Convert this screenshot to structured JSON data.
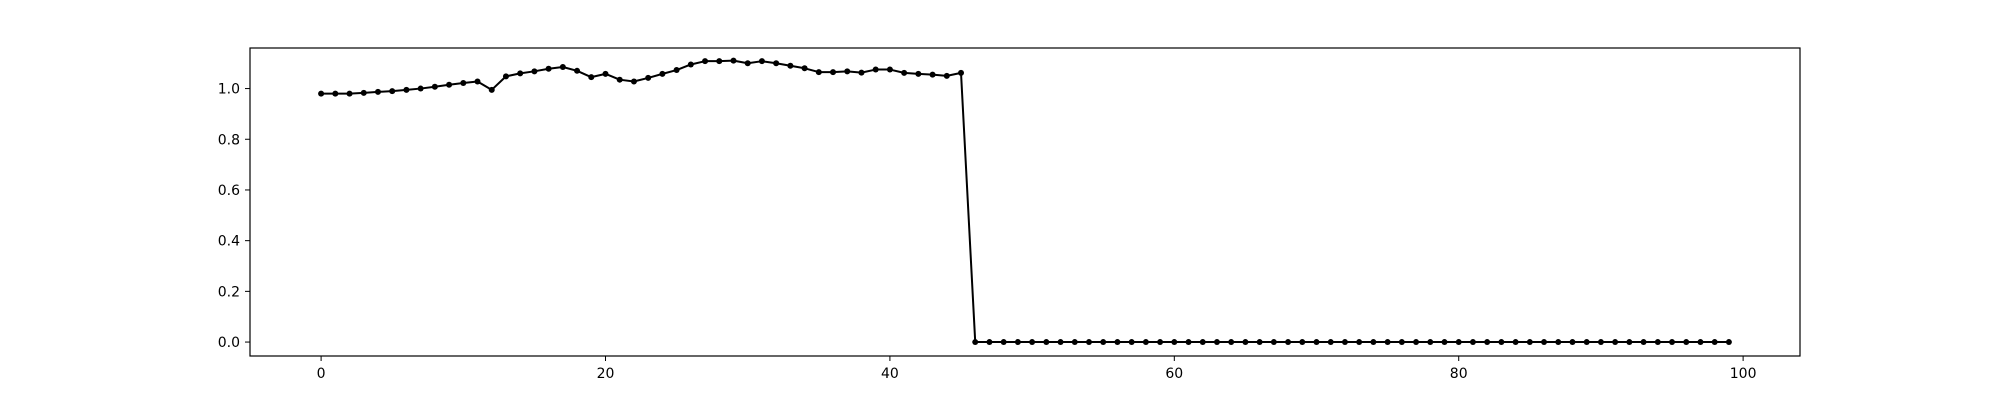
{
  "chart_data": {
    "type": "line",
    "title": "",
    "xlabel": "",
    "ylabel": "",
    "xlim": [
      -5,
      104
    ],
    "ylim": [
      -0.055,
      1.16
    ],
    "grid": false,
    "legend": "none",
    "line_color": "#000000",
    "x_ticks": [
      {
        "value": 0,
        "label": "0"
      },
      {
        "value": 20,
        "label": "20"
      },
      {
        "value": 40,
        "label": "40"
      },
      {
        "value": 60,
        "label": "60"
      },
      {
        "value": 80,
        "label": "80"
      },
      {
        "value": 100,
        "label": "100"
      }
    ],
    "y_ticks": [
      {
        "value": 0.0,
        "label": "0.0"
      },
      {
        "value": 0.2,
        "label": "0.2"
      },
      {
        "value": 0.4,
        "label": "0.4"
      },
      {
        "value": 0.6,
        "label": "0.6"
      },
      {
        "value": 0.8,
        "label": "0.8"
      },
      {
        "value": 1.0,
        "label": "1.0"
      }
    ],
    "x": [
      0,
      1,
      2,
      3,
      4,
      5,
      6,
      7,
      8,
      9,
      10,
      11,
      12,
      13,
      14,
      15,
      16,
      17,
      18,
      19,
      20,
      21,
      22,
      23,
      24,
      25,
      26,
      27,
      28,
      29,
      30,
      31,
      32,
      33,
      34,
      35,
      36,
      37,
      38,
      39,
      40,
      41,
      42,
      43,
      44,
      45,
      46,
      47,
      48,
      49,
      50,
      51,
      52,
      53,
      54,
      55,
      56,
      57,
      58,
      59,
      60,
      61,
      62,
      63,
      64,
      65,
      66,
      67,
      68,
      69,
      70,
      71,
      72,
      73,
      74,
      75,
      76,
      77,
      78,
      79,
      80,
      81,
      82,
      83,
      84,
      85,
      86,
      87,
      88,
      89,
      90,
      91,
      92,
      93,
      94,
      95,
      96,
      97,
      98,
      99
    ],
    "y": [
      0.98,
      0.98,
      0.98,
      0.983,
      0.987,
      0.99,
      0.995,
      1.0,
      1.007,
      1.015,
      1.022,
      1.028,
      0.995,
      1.048,
      1.06,
      1.068,
      1.078,
      1.085,
      1.07,
      1.045,
      1.058,
      1.035,
      1.028,
      1.042,
      1.058,
      1.073,
      1.095,
      1.108,
      1.108,
      1.11,
      1.1,
      1.108,
      1.1,
      1.09,
      1.08,
      1.065,
      1.065,
      1.068,
      1.063,
      1.075,
      1.075,
      1.062,
      1.058,
      1.055,
      1.05,
      1.062,
      0.0,
      0.0,
      0.0,
      0.0,
      0.0,
      0.0,
      0.0,
      0.0,
      0.0,
      0.0,
      0.0,
      0.0,
      0.0,
      0.0,
      0.0,
      0.0,
      0.0,
      0.0,
      0.0,
      0.0,
      0.0,
      0.0,
      0.0,
      0.0,
      0.0,
      0.0,
      0.0,
      0.0,
      0.0,
      0.0,
      0.0,
      0.0,
      0.0,
      0.0,
      0.0,
      0.0,
      0.0,
      0.0,
      0.0,
      0.0,
      0.0,
      0.0,
      0.0,
      0.0,
      0.0,
      0.0,
      0.0,
      0.0,
      0.0,
      0.0,
      0.0,
      0.0,
      0.0,
      0.0
    ]
  }
}
